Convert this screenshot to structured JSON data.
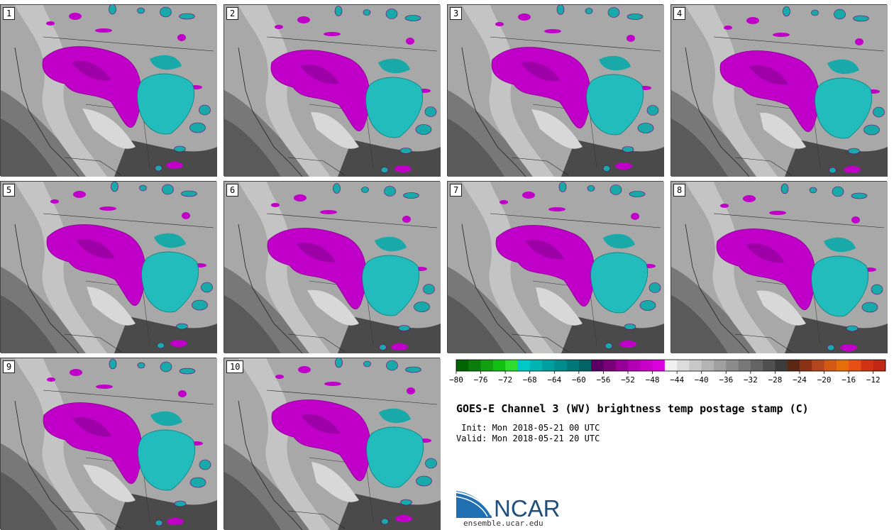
{
  "panels": [
    {
      "label": "1"
    },
    {
      "label": "2"
    },
    {
      "label": "3"
    },
    {
      "label": "4"
    },
    {
      "label": "5"
    },
    {
      "label": "6"
    },
    {
      "label": "7"
    },
    {
      "label": "8"
    },
    {
      "label": "9"
    },
    {
      "label": "10"
    }
  ],
  "colorbar": {
    "ticks": [
      "−80",
      "−76",
      "−72",
      "−68",
      "−64",
      "−60",
      "−56",
      "−52",
      "−48",
      "−44",
      "−40",
      "−36",
      "−32",
      "−28",
      "−24",
      "−20",
      "−16",
      "−12"
    ],
    "colors": [
      "#006400",
      "#0a7d0a",
      "#10a010",
      "#12c012",
      "#2fdc2f",
      "#00c8c8",
      "#00b4b4",
      "#00a0a0",
      "#008c8c",
      "#007878",
      "#006464",
      "#5a0064",
      "#780078",
      "#960096",
      "#b400b4",
      "#c800c8",
      "#dc00dc",
      "#f0f0f0",
      "#dcdcdc",
      "#c8c8c8",
      "#b4b4b4",
      "#a0a0a0",
      "#8c8c8c",
      "#787878",
      "#646464",
      "#505050",
      "#3c3c3c",
      "#5a2814",
      "#8c3214",
      "#b4461e",
      "#d25a14",
      "#e66e0a",
      "#e65014",
      "#d23214",
      "#be2814"
    ]
  },
  "title": "GOES-E Channel 3 (WV) brightness temp postage stamp (C)",
  "init": " Init: Mon 2018-05-21 00 UTC",
  "valid": "Valid: Mon 2018-05-21 20 UTC",
  "logo_text": "NCAR",
  "site": "ensemble.ucar.edu"
}
